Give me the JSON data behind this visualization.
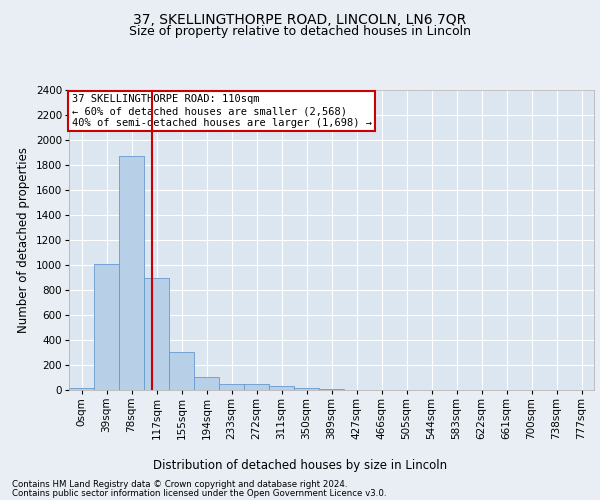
{
  "title1": "37, SKELLINGTHORPE ROAD, LINCOLN, LN6 7QR",
  "title2": "Size of property relative to detached houses in Lincoln",
  "xlabel": "Distribution of detached houses by size in Lincoln",
  "ylabel": "Number of detached properties",
  "bar_labels": [
    "0sqm",
    "39sqm",
    "78sqm",
    "117sqm",
    "155sqm",
    "194sqm",
    "233sqm",
    "272sqm",
    "311sqm",
    "350sqm",
    "389sqm",
    "427sqm",
    "466sqm",
    "505sqm",
    "544sqm",
    "583sqm",
    "622sqm",
    "661sqm",
    "700sqm",
    "738sqm",
    "777sqm"
  ],
  "bar_values": [
    20,
    1005,
    1870,
    895,
    305,
    105,
    48,
    45,
    30,
    18,
    5,
    2,
    1,
    0,
    0,
    0,
    0,
    0,
    0,
    0,
    0
  ],
  "bar_color": "#b8cfe8",
  "bar_edgecolor": "#6699cc",
  "vline_color": "#cc0000",
  "ylim": [
    0,
    2400
  ],
  "yticks": [
    0,
    200,
    400,
    600,
    800,
    1000,
    1200,
    1400,
    1600,
    1800,
    2000,
    2200,
    2400
  ],
  "annotation_title": "37 SKELLINGTHORPE ROAD: 110sqm",
  "annotation_line1": "← 60% of detached houses are smaller (2,568)",
  "annotation_line2": "40% of semi-detached houses are larger (1,698) →",
  "annotation_box_edgecolor": "#cc0000",
  "footer1": "Contains HM Land Registry data © Crown copyright and database right 2024.",
  "footer2": "Contains public sector information licensed under the Open Government Licence v3.0.",
  "bg_color": "#e8eef4",
  "plot_bg_color": "#dce6f0",
  "grid_color": "#ffffff",
  "title1_fontsize": 10,
  "title2_fontsize": 9,
  "ylabel_fontsize": 8.5,
  "xlabel_fontsize": 8.5,
  "tick_fontsize": 7.5,
  "footer_fontsize": 6.2,
  "annot_fontsize": 7.5
}
